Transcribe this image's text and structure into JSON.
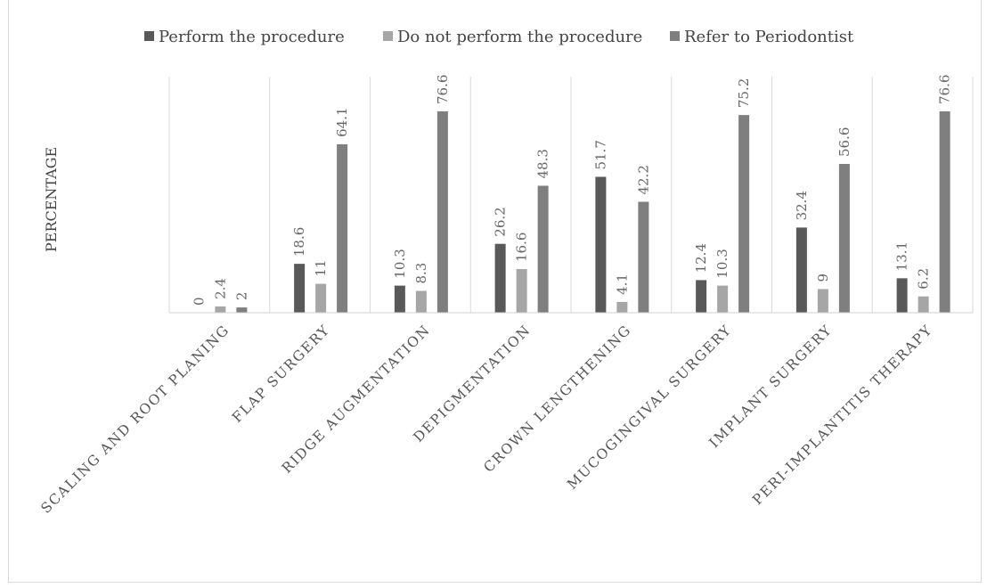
{
  "chart_data": {
    "type": "bar",
    "title": "",
    "xlabel": "",
    "ylabel": "PERCENTAGE",
    "ylim": [
      0,
      80
    ],
    "grid": false,
    "legend_position": "top",
    "categories": [
      "SCALING AND ROOT PLANING",
      "FLAP SURGERY",
      "RIDGE AUGMENTATION",
      "DEPIGMENTATION",
      "CROWN LENGTHENING",
      "MUCOGINGIVAL SURGERY",
      "IMPLANT SURGERY",
      "PERI-IMPLANTITIS THERAPY"
    ],
    "series": [
      {
        "name": "Perform the procedure",
        "color": "#595959",
        "values": [
          0,
          18.6,
          10.3,
          26.2,
          51.7,
          12.4,
          32.4,
          13.1
        ]
      },
      {
        "name": "Do not perform the procedure",
        "color": "#a6a6a6",
        "values": [
          2.4,
          11,
          8.3,
          16.6,
          4.1,
          10.3,
          9,
          6.2
        ]
      },
      {
        "name": "Refer to Periodontist",
        "color": "#7f7f7f",
        "values": [
          2,
          64.1,
          76.6,
          48.3,
          42.2,
          75.2,
          56.6,
          76.6
        ]
      }
    ]
  }
}
